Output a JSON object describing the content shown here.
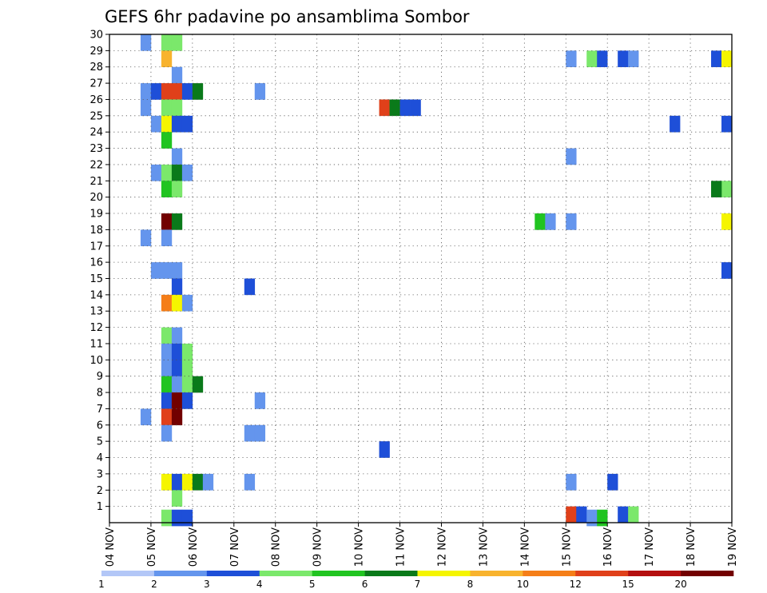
{
  "chart_data": {
    "type": "heatmap",
    "title": "GEFS 6hr padavine po ansamblima Sombor",
    "x_ticks": [
      "04 NOV",
      "05 NOV",
      "06 NOV",
      "07 NOV",
      "08 NOV",
      "09 NOV",
      "10 NOV",
      "11 NOV",
      "12 NOV",
      "13 NOV",
      "14 NOV",
      "15 NOV",
      "16 NOV",
      "17 NOV",
      "18 NOV",
      "19 NOV"
    ],
    "y_ticks": [
      "1",
      "2",
      "3",
      "4",
      "5",
      "6",
      "7",
      "8",
      "9",
      "10",
      "11",
      "12",
      "13",
      "14",
      "15",
      "16",
      "17",
      "18",
      "19",
      "20",
      "21",
      "22",
      "23",
      "24",
      "25",
      "26",
      "27",
      "28",
      "29",
      "30"
    ],
    "x_range": [
      0,
      60
    ],
    "y_range": [
      0,
      30
    ],
    "grid": "dotted",
    "colorbar": {
      "labels": [
        "1",
        "2",
        "3",
        "4",
        "5",
        "6",
        "7",
        "8",
        "10",
        "12",
        "15",
        "20"
      ],
      "colors": [
        "#b3c7f7",
        "#6495ed",
        "#1e4fd8",
        "#7be86b",
        "#21c421",
        "#0a7a1a",
        "#f5f500",
        "#f8b32e",
        "#f57e18",
        "#e0401a",
        "#b40f0f",
        "#720000"
      ]
    },
    "cells": [
      [
        3,
        29,
        1
      ],
      [
        5,
        29,
        3
      ],
      [
        6,
        29,
        3
      ],
      [
        5,
        28,
        7
      ],
      [
        6,
        27,
        1
      ],
      [
        3,
        26,
        1
      ],
      [
        4,
        26,
        2
      ],
      [
        5,
        26,
        9
      ],
      [
        6,
        26,
        9
      ],
      [
        7,
        26,
        2
      ],
      [
        8,
        26,
        5
      ],
      [
        14,
        26,
        1
      ],
      [
        3,
        25,
        1
      ],
      [
        5,
        25,
        3
      ],
      [
        6,
        25,
        3
      ],
      [
        4,
        24,
        1
      ],
      [
        5,
        24,
        6
      ],
      [
        6,
        24,
        2
      ],
      [
        7,
        24,
        2
      ],
      [
        5,
        23,
        4
      ],
      [
        6,
        22,
        1
      ],
      [
        4,
        21,
        1
      ],
      [
        5,
        21,
        3
      ],
      [
        6,
        21,
        5
      ],
      [
        7,
        21,
        1
      ],
      [
        5,
        20,
        4
      ],
      [
        6,
        20,
        3
      ],
      [
        5,
        18,
        11
      ],
      [
        6,
        18,
        5
      ],
      [
        3,
        17,
        1
      ],
      [
        5,
        17,
        1
      ],
      [
        4,
        15,
        1
      ],
      [
        5,
        15,
        1
      ],
      [
        6,
        15,
        1
      ],
      [
        6,
        14,
        2
      ],
      [
        13,
        14,
        2
      ],
      [
        5,
        13,
        8
      ],
      [
        6,
        13,
        6
      ],
      [
        7,
        13,
        1
      ],
      [
        5,
        11,
        3
      ],
      [
        6,
        11,
        1
      ],
      [
        5,
        10,
        1
      ],
      [
        6,
        10,
        2
      ],
      [
        7,
        10,
        3
      ],
      [
        5,
        9,
        1
      ],
      [
        6,
        9,
        2
      ],
      [
        7,
        9,
        3
      ],
      [
        5,
        8,
        4
      ],
      [
        6,
        8,
        1
      ],
      [
        7,
        8,
        3
      ],
      [
        8,
        8,
        5
      ],
      [
        5,
        7,
        2
      ],
      [
        6,
        7,
        11
      ],
      [
        7,
        7,
        2
      ],
      [
        14,
        7,
        1
      ],
      [
        3,
        6,
        1
      ],
      [
        5,
        6,
        9
      ],
      [
        6,
        6,
        11
      ],
      [
        5,
        5,
        1
      ],
      [
        13,
        5,
        1
      ],
      [
        14,
        5,
        1
      ],
      [
        26,
        4,
        2
      ],
      [
        5,
        2,
        6
      ],
      [
        6,
        2,
        2
      ],
      [
        7,
        2,
        6
      ],
      [
        8,
        2,
        5
      ],
      [
        9,
        2,
        1
      ],
      [
        13,
        2,
        1
      ],
      [
        6,
        1,
        3
      ],
      [
        5,
        -0.2,
        3
      ],
      [
        6,
        -0.2,
        2
      ],
      [
        7,
        -0.2,
        2
      ],
      [
        26,
        25,
        9
      ],
      [
        27,
        25,
        5
      ],
      [
        28,
        25,
        2
      ],
      [
        29,
        25,
        2
      ],
      [
        41,
        18,
        4
      ],
      [
        42,
        18,
        1
      ],
      [
        44,
        18,
        1
      ],
      [
        44,
        28,
        1
      ],
      [
        46,
        28,
        3
      ],
      [
        47,
        28,
        2
      ],
      [
        49,
        28,
        2
      ],
      [
        50,
        28,
        1
      ],
      [
        58,
        28,
        2
      ],
      [
        44,
        22,
        1
      ],
      [
        54,
        24,
        2
      ],
      [
        59,
        24,
        2
      ],
      [
        59,
        20,
        3
      ],
      [
        58,
        20,
        5
      ],
      [
        59,
        18,
        6
      ],
      [
        59,
        15,
        2
      ],
      [
        59,
        28,
        6
      ],
      [
        44,
        2,
        1
      ],
      [
        48,
        2,
        2
      ],
      [
        44,
        0,
        9
      ],
      [
        45,
        0,
        2
      ],
      [
        49,
        0,
        2
      ],
      [
        50,
        0,
        3
      ],
      [
        46,
        -0.2,
        1
      ],
      [
        47,
        -0.2,
        4
      ]
    ]
  }
}
